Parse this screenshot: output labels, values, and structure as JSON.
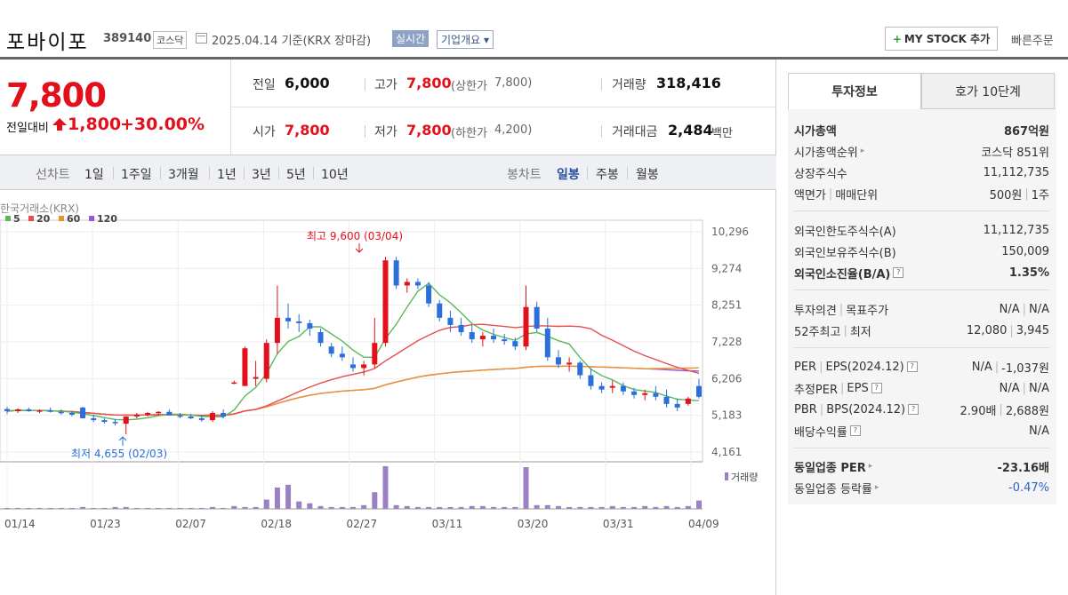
{
  "header": {
    "name": "포바이포",
    "code": "389140",
    "market": "코스닥",
    "date_text": "2025.04.14  기준(KRX 장마감)",
    "realtime": "실시간",
    "company_info": "기업개요 ▾",
    "mystock": "MY STOCK 추가",
    "quick_order": "빠른주문"
  },
  "quote": {
    "price": "7,800",
    "change_label": "전일대비",
    "change": "1,800",
    "change_pct": "+30.00%",
    "prev_label": "전일",
    "prev": "6,000",
    "high_label": "고가",
    "high": "7,800",
    "upper_label": "(상한가",
    "upper": "7,800)",
    "volume_label": "거래량",
    "volume": "318,416",
    "open_label": "시가",
    "open": "7,800",
    "low_label": "저가",
    "low": "7,800",
    "lower_label": "(하한가",
    "lower": "4,200)",
    "amount_label": "거래대금",
    "amount": "2,484",
    "amount_unit": "백만"
  },
  "periods": {
    "line": "선차트",
    "items": [
      "1일",
      "1주일",
      "3개월",
      "1년",
      "3년",
      "5년",
      "10년"
    ],
    "candle": "봉차트",
    "candle_items": [
      "일봉",
      "주봉",
      "월봉"
    ]
  },
  "chart_data": {
    "type": "candlestick",
    "source": "한국거래소(KRX)",
    "legend": [
      {
        "name": "5",
        "color": "#5cb85c"
      },
      {
        "name": "20",
        "color": "#e84c4c"
      },
      {
        "name": "60",
        "color": "#f0922b"
      },
      {
        "name": "120",
        "color": "#9b59d0"
      }
    ],
    "y_ticks": [
      "10,296",
      "9,274",
      "8,251",
      "7,228",
      "6,206",
      "5,183",
      "4,161"
    ],
    "ylim": [
      4161,
      10296
    ],
    "x_ticks": [
      "01/14",
      "01/23",
      "02/07",
      "02/18",
      "02/27",
      "03/11",
      "03/20",
      "03/31",
      "04/09"
    ],
    "high_annotation": "최고 9,600 (03/04)",
    "low_annotation": "최저 4,655 (02/03)",
    "volume_label": "거래량",
    "candles": [
      [
        5360,
        5420,
        5220,
        5300
      ],
      [
        5300,
        5380,
        5250,
        5350
      ],
      [
        5350,
        5400,
        5280,
        5300
      ],
      [
        5300,
        5350,
        5240,
        5320
      ],
      [
        5320,
        5400,
        5260,
        5280
      ],
      [
        5280,
        5350,
        5200,
        5250
      ],
      [
        5250,
        5300,
        5150,
        5200
      ],
      [
        5400,
        5420,
        5100,
        5100
      ],
      [
        5100,
        5200,
        5000,
        5050
      ],
      [
        5050,
        5100,
        4950,
        5000
      ],
      [
        5000,
        5080,
        4900,
        4980
      ],
      [
        4950,
        5100,
        4655,
        5150
      ],
      [
        5150,
        5250,
        5100,
        5200
      ],
      [
        5200,
        5280,
        5150,
        5250
      ],
      [
        5250,
        5300,
        5180,
        5280
      ],
      [
        5280,
        5350,
        5200,
        5180
      ],
      [
        5180,
        5250,
        5100,
        5150
      ],
      [
        5150,
        5220,
        5080,
        5100
      ],
      [
        5100,
        5200,
        5000,
        5050
      ],
      [
        5050,
        5300,
        5000,
        5250
      ],
      [
        5250,
        5350,
        5100,
        5150
      ],
      [
        6100,
        6150,
        6050,
        6100
      ],
      [
        6000,
        7100,
        6000,
        7050
      ],
      [
        6200,
        6700,
        6000,
        6250
      ],
      [
        6200,
        7300,
        6100,
        7200
      ],
      [
        7200,
        8800,
        6900,
        7900
      ],
      [
        7900,
        8300,
        7600,
        7800
      ],
      [
        7800,
        8000,
        7500,
        7750
      ],
      [
        7750,
        7850,
        7400,
        7600
      ],
      [
        7500,
        7600,
        7100,
        7200
      ],
      [
        7100,
        7200,
        6800,
        6900
      ],
      [
        6900,
        7100,
        6700,
        6800
      ],
      [
        6600,
        6800,
        6400,
        6500
      ],
      [
        6500,
        6700,
        6300,
        6600
      ],
      [
        6600,
        7900,
        6500,
        7200
      ],
      [
        7200,
        9600,
        7100,
        9500
      ],
      [
        9500,
        9600,
        8700,
        8800
      ],
      [
        8800,
        9000,
        8600,
        8900
      ],
      [
        8900,
        9000,
        8700,
        8800
      ],
      [
        8800,
        8900,
        8200,
        8300
      ],
      [
        8300,
        8400,
        7800,
        7900
      ],
      [
        7900,
        8100,
        7500,
        7700
      ],
      [
        7700,
        7900,
        7400,
        7500
      ],
      [
        7500,
        7700,
        7200,
        7300
      ],
      [
        7300,
        7500,
        7100,
        7400
      ],
      [
        7400,
        7600,
        7200,
        7300
      ],
      [
        7300,
        7450,
        7150,
        7250
      ],
      [
        7250,
        7350,
        7000,
        7100
      ],
      [
        7100,
        8800,
        7000,
        8200
      ],
      [
        8200,
        8350,
        7500,
        7600
      ],
      [
        7600,
        7900,
        6700,
        6800
      ],
      [
        6800,
        7000,
        6500,
        6600
      ],
      [
        6600,
        6800,
        6400,
        6650
      ],
      [
        6650,
        6700,
        6200,
        6300
      ],
      [
        6300,
        6500,
        5900,
        6000
      ],
      [
        6000,
        6100,
        5800,
        5900
      ],
      [
        5950,
        6150,
        5800,
        6000
      ],
      [
        6000,
        6100,
        5750,
        5850
      ],
      [
        5850,
        5950,
        5650,
        5750
      ],
      [
        5750,
        5900,
        5600,
        5800
      ],
      [
        5800,
        6000,
        5600,
        5700
      ],
      [
        5700,
        5900,
        5400,
        5500
      ],
      [
        5500,
        5650,
        5300,
        5400
      ],
      [
        5500,
        5700,
        5450,
        5650
      ],
      [
        6000,
        6200,
        5650,
        5700
      ]
    ],
    "volume": [
      1,
      1,
      1,
      1,
      1,
      1,
      1,
      2,
      1,
      1,
      2,
      2,
      1,
      1,
      1,
      1,
      1,
      1,
      1,
      2,
      1,
      3,
      2,
      2,
      10,
      23,
      26,
      8,
      6,
      3,
      2,
      2,
      2,
      4,
      18,
      46,
      4,
      3,
      2,
      2,
      2,
      2,
      2,
      3,
      3,
      2,
      2,
      2,
      45,
      4,
      4,
      3,
      2,
      2,
      2,
      2,
      3,
      2,
      2,
      3,
      2,
      3,
      2,
      3,
      9
    ]
  },
  "right": {
    "tab1": "투자정보",
    "tab2": "호가 10단계",
    "market_cap_label": "시가총액",
    "market_cap": "867억원",
    "rank_label": "시가총액순위",
    "rank": "코스닥 851위",
    "shares_label": "상장주식수",
    "shares": "11,112,735",
    "par_label": "액면가",
    "unit_label": "매매단위",
    "par": "500원",
    "unit": "1주",
    "foreign_limit_label": "외국인한도주식수(A)",
    "foreign_limit": "11,112,735",
    "foreign_hold_label": "외국인보유주식수(B)",
    "foreign_hold": "150,009",
    "foreign_ratio_label": "외국인소진율(B/A)",
    "foreign_ratio": "1.35%",
    "opinion_label": "투자의견",
    "target_label": "목표주가",
    "opinion": "N/A",
    "target": "N/A",
    "w52_label": "52주최고",
    "low52_label": "최저",
    "w52": "12,080",
    "low52": "3,945",
    "per_label": "PER",
    "eps_label": "EPS(2024.12)",
    "per": "N/A",
    "eps": "-1,037원",
    "eper_label": "추정PER",
    "eeps_label": "EPS",
    "eper": "N/A",
    "eeps": "N/A",
    "pbr_label": "PBR",
    "bps_label": "BPS(2024.12)",
    "pbr": "2.90배",
    "bps": "2,688원",
    "div_label": "배당수익률",
    "div": "N/A",
    "ind_per_label": "동일업종 PER",
    "ind_per": "-23.16배",
    "ind_rate_label": "동일업종 등락률",
    "ind_rate": "-0.47%"
  }
}
